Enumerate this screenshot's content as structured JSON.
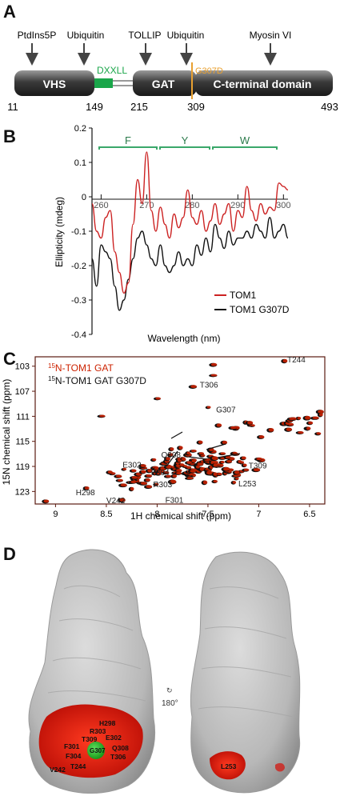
{
  "panelA": {
    "letter": "A",
    "ligands": [
      "PtdIns5P",
      "Ubiquitin",
      "TOLLIP",
      "Ubiquitin",
      "Myosin VI"
    ],
    "domains": {
      "vhs": "VHS",
      "motif": "DXXLL",
      "gat": "GAT",
      "cterm": "C-terminal domain"
    },
    "mutation": "G307D",
    "positions": [
      "11",
      "149",
      "215",
      "309",
      "493"
    ],
    "colors": {
      "motif": "#1aa64a",
      "mutation": "#e8a030"
    }
  },
  "panelB": {
    "letter": "B",
    "region_labels": [
      "F",
      "Y",
      "W"
    ],
    "legend": [
      "TOM1",
      "TOM1 G307D"
    ],
    "series_colors": [
      "#cc2222",
      "#111111"
    ]
  },
  "panelC": {
    "letter": "C",
    "legend": [
      "15N-TOM1 GAT",
      "15N-TOM1 GAT G307D"
    ],
    "legend_sup": "15",
    "legend_rest": [
      "N-TOM1 GAT",
      "N-TOM1 GAT G307D"
    ],
    "xlabel": "1H chemical shift (ppm)",
    "ylabel": "15N chemical shift (ppm)",
    "xticks": [
      "9",
      "8.5",
      "8",
      "7.5",
      "7",
      "6.5"
    ],
    "yticks": [
      "103",
      "107",
      "111",
      "115",
      "119",
      "123"
    ],
    "peak_labels": [
      "T244",
      "T306",
      "G307",
      "Q308",
      "T309",
      "E302",
      "F304",
      "R303",
      "L253",
      "F301",
      "H298",
      "V242"
    ],
    "colors": [
      "#cc2200",
      "#111111"
    ]
  },
  "panelD": {
    "letter": "D",
    "rotation": "180°",
    "residues_left": [
      "H298",
      "R303",
      "T309",
      "E302",
      "F301",
      "G307",
      "Q308",
      "F304",
      "T306",
      "V242",
      "T244"
    ],
    "residues_right": [
      "L253"
    ],
    "colors": {
      "surface": "#c4c4c4",
      "highlight": "#dd1a10",
      "mutation": "#22aa22"
    }
  },
  "chart_data": [
    {
      "type": "line",
      "panel": "B",
      "xlabel": "Wavelength (nm)",
      "ylabel": "Ellipticity (mdeg)",
      "xticks": [
        "260",
        "270",
        "280",
        "290",
        "300"
      ],
      "yticks": [
        "0.2",
        "0.1",
        "0",
        "-0.1",
        "-0.2",
        "-0.3",
        "-0.4"
      ],
      "ylim": [
        -0.4,
        0.2
      ],
      "xlim": [
        258,
        301
      ],
      "series": [
        {
          "name": "TOM1",
          "x": [
            258,
            259,
            260,
            261,
            262,
            263,
            264,
            265,
            266,
            267,
            268,
            269,
            270,
            271,
            272,
            273,
            274,
            275,
            276,
            277,
            278,
            279,
            280,
            281,
            282,
            283,
            284,
            285,
            286,
            287,
            288,
            289,
            290,
            291,
            292,
            293,
            294,
            295,
            296,
            297,
            298,
            299,
            300,
            301
          ],
          "y": [
            -0.02,
            -0.1,
            -0.12,
            -0.06,
            -0.04,
            -0.16,
            -0.22,
            -0.28,
            -0.25,
            -0.08,
            0.05,
            -0.02,
            0.13,
            -0.04,
            -0.1,
            -0.03,
            -0.08,
            -0.12,
            -0.05,
            -0.09,
            -0.06,
            0.02,
            -0.06,
            -0.08,
            -0.04,
            -0.1,
            -0.07,
            -0.02,
            -0.08,
            -0.05,
            -0.02,
            -0.1,
            -0.04,
            -0.06,
            0.03,
            -0.04,
            -0.07,
            -0.02,
            -0.05,
            -0.03,
            -0.04,
            0.04,
            0.03,
            0.02
          ]
        },
        {
          "name": "TOM1 G307D",
          "x": [
            258,
            259,
            260,
            261,
            262,
            263,
            264,
            265,
            266,
            267,
            268,
            269,
            270,
            271,
            272,
            273,
            274,
            275,
            276,
            277,
            278,
            279,
            280,
            281,
            282,
            283,
            284,
            285,
            286,
            287,
            288,
            289,
            290,
            291,
            292,
            293,
            294,
            295,
            296,
            297,
            298,
            299,
            300,
            301
          ],
          "y": [
            -0.18,
            -0.26,
            -0.14,
            -0.16,
            -0.18,
            -0.26,
            -0.33,
            -0.3,
            -0.24,
            -0.18,
            -0.12,
            -0.1,
            -0.14,
            -0.18,
            -0.2,
            -0.14,
            -0.2,
            -0.22,
            -0.2,
            -0.16,
            -0.2,
            -0.18,
            -0.2,
            -0.14,
            -0.17,
            -0.12,
            -0.16,
            -0.08,
            -0.12,
            -0.15,
            -0.1,
            -0.14,
            -0.12,
            -0.12,
            -0.1,
            -0.12,
            -0.08,
            -0.1,
            -0.12,
            -0.06,
            -0.12,
            -0.1,
            -0.08,
            -0.12
          ]
        }
      ]
    }
  ]
}
